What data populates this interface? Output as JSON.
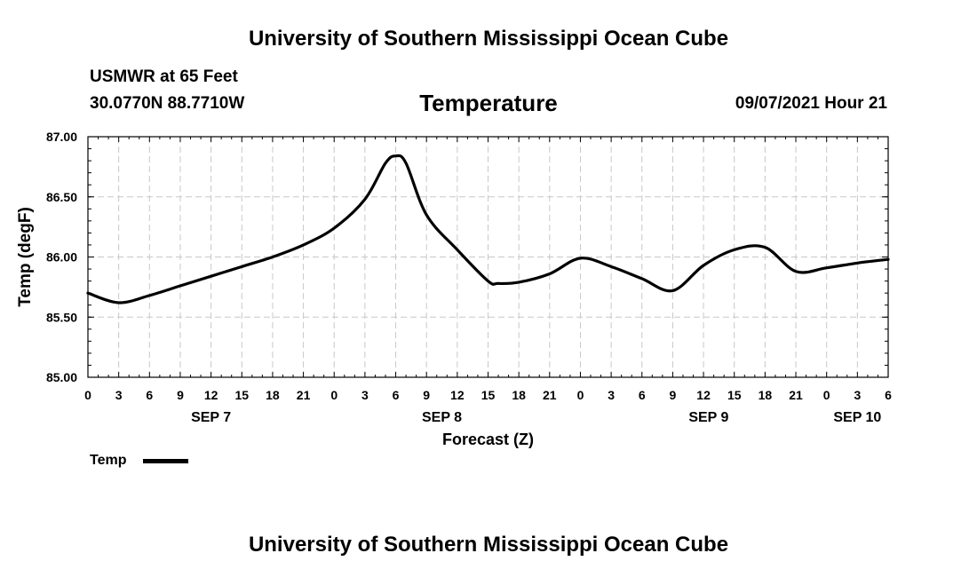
{
  "header": {
    "title": "University of Southern Mississippi Ocean Cube",
    "station": "USMWR at 65 Feet",
    "coords": "30.0770N  88.7710W",
    "parameter": "Temperature",
    "run": "09/07/2021 Hour 21"
  },
  "footer": {
    "title": "University of Southern Mississippi Ocean Cube"
  },
  "legend": {
    "label": "Temp",
    "color": "#000000"
  },
  "chart_data": {
    "type": "line",
    "title": "Temperature",
    "xlabel": "Forecast (Z)",
    "ylabel": "Temp (degF)",
    "xlim": [
      0,
      78
    ],
    "ylim": [
      85.0,
      87.0
    ],
    "yticks": [
      "85.00",
      "85.50",
      "86.00",
      "86.50",
      "87.00"
    ],
    "ytick_values": [
      85.0,
      85.5,
      86.0,
      86.5,
      87.0
    ],
    "xticks": [
      "0",
      "3",
      "6",
      "9",
      "12",
      "15",
      "18",
      "21",
      "0",
      "3",
      "6",
      "9",
      "12",
      "15",
      "18",
      "21",
      "0",
      "3",
      "6",
      "9",
      "12",
      "15",
      "18",
      "21",
      "0",
      "3",
      "6"
    ],
    "day_labels": [
      {
        "label": "SEP 7",
        "hour": 12
      },
      {
        "label": "SEP 8",
        "hour": 34.5
      },
      {
        "label": "SEP 9",
        "hour": 60.5
      },
      {
        "label": "SEP 10",
        "hour": 75
      }
    ],
    "grid": true,
    "series": [
      {
        "name": "Temp",
        "x": [
          0,
          3,
          6,
          9,
          12,
          15,
          18,
          21,
          24,
          27,
          29,
          30,
          31,
          33,
          36,
          39,
          40,
          42,
          45,
          48,
          51,
          54,
          57,
          60,
          63,
          66,
          69,
          72,
          75,
          78
        ],
        "values": [
          85.7,
          85.62,
          85.68,
          85.76,
          85.84,
          85.92,
          86.0,
          86.1,
          86.24,
          86.48,
          86.78,
          86.84,
          86.78,
          86.35,
          86.06,
          85.8,
          85.78,
          85.79,
          85.86,
          85.99,
          85.92,
          85.82,
          85.72,
          85.93,
          86.06,
          86.08,
          85.88,
          85.91,
          85.95,
          85.98
        ]
      }
    ]
  }
}
